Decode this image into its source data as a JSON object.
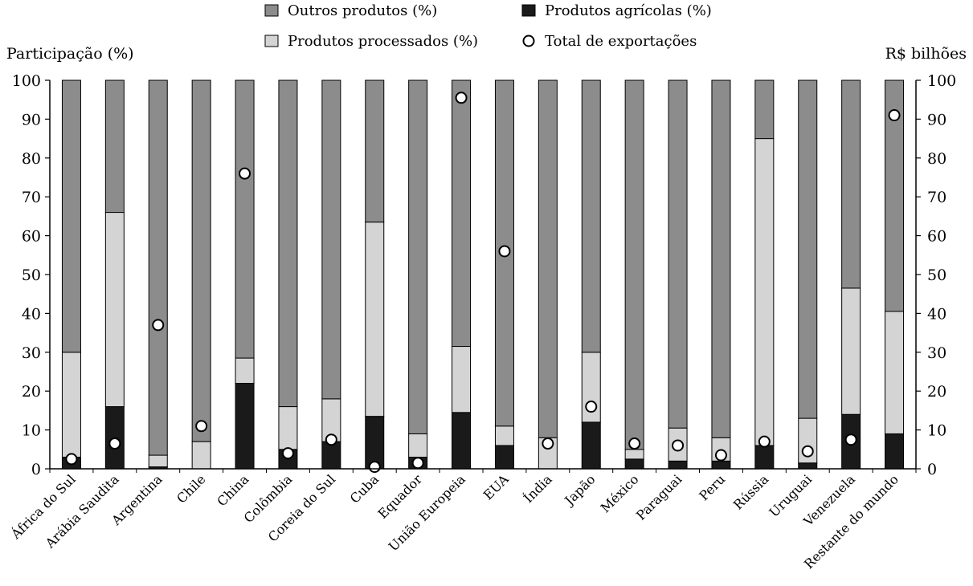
{
  "chart_data": {
    "type": "bar",
    "stacked": true,
    "categories": [
      "África do Sul",
      "Arábia Saudita",
      "Argentina",
      "Chile",
      "China",
      "Colômbia",
      "Coreia do Sul",
      "Cuba",
      "Equador",
      "União Europeia",
      "EUA",
      "Índia",
      "Japão",
      "México",
      "Paraguai",
      "Peru",
      "Rússia",
      "Uruguai",
      "Venezuela",
      "Restante do mundo"
    ],
    "series": [
      {
        "name": "Produtos agrícolas (%)",
        "color": "#1a1a1a",
        "values": [
          3,
          16,
          0.5,
          0,
          22,
          5,
          7,
          13.5,
          3,
          14.5,
          6,
          0,
          12,
          2.5,
          2,
          2,
          6,
          1.5,
          14,
          9
        ]
      },
      {
        "name": "Produtos processados (%)",
        "color": "#d4d4d4",
        "values": [
          27,
          50,
          3,
          7,
          6.5,
          11,
          11,
          50,
          6,
          17,
          5,
          8,
          18,
          2.5,
          8.5,
          6,
          79,
          11.5,
          32.5,
          31.5
        ]
      },
      {
        "name": "Outros produtos (%)",
        "color": "#8c8c8c",
        "values": [
          70,
          34,
          96.5,
          93,
          71.5,
          84,
          82,
          36.5,
          91,
          68.5,
          89,
          92,
          70,
          95,
          89.5,
          92,
          15,
          87,
          53.5,
          59.5
        ]
      }
    ],
    "markers": {
      "name": "Total de exportações",
      "values": [
        2.5,
        6.5,
        37,
        11,
        76,
        4,
        7.5,
        0.5,
        1.5,
        95.5,
        56,
        6.5,
        16,
        6.5,
        6,
        3.5,
        7,
        4.5,
        7.5,
        91
      ]
    },
    "left_axis": {
      "title": "Participação (%)",
      "min": 0,
      "max": 100,
      "ticks": [
        "0",
        "10",
        "20",
        "30",
        "40",
        "50",
        "60",
        "70",
        "80",
        "90",
        "100"
      ]
    },
    "right_axis": {
      "title": "R$ bilhões",
      "min": 0,
      "max": 100,
      "ticks": [
        "0",
        "10",
        "20",
        "30",
        "40",
        "50",
        "60",
        "70",
        "80",
        "90",
        "100"
      ]
    },
    "legend": {
      "placement": "top",
      "items": [
        {
          "label": "Outros produtos (%)",
          "kind": "box",
          "color": "#8c8c8c"
        },
        {
          "label": "Produtos agrícolas (%)",
          "kind": "box",
          "color": "#1a1a1a"
        },
        {
          "label": "Produtos processados (%)",
          "kind": "box",
          "color": "#d4d4d4"
        },
        {
          "label": "Total de exportações",
          "kind": "circle",
          "color": "#ffffff"
        }
      ]
    },
    "grid": false
  }
}
